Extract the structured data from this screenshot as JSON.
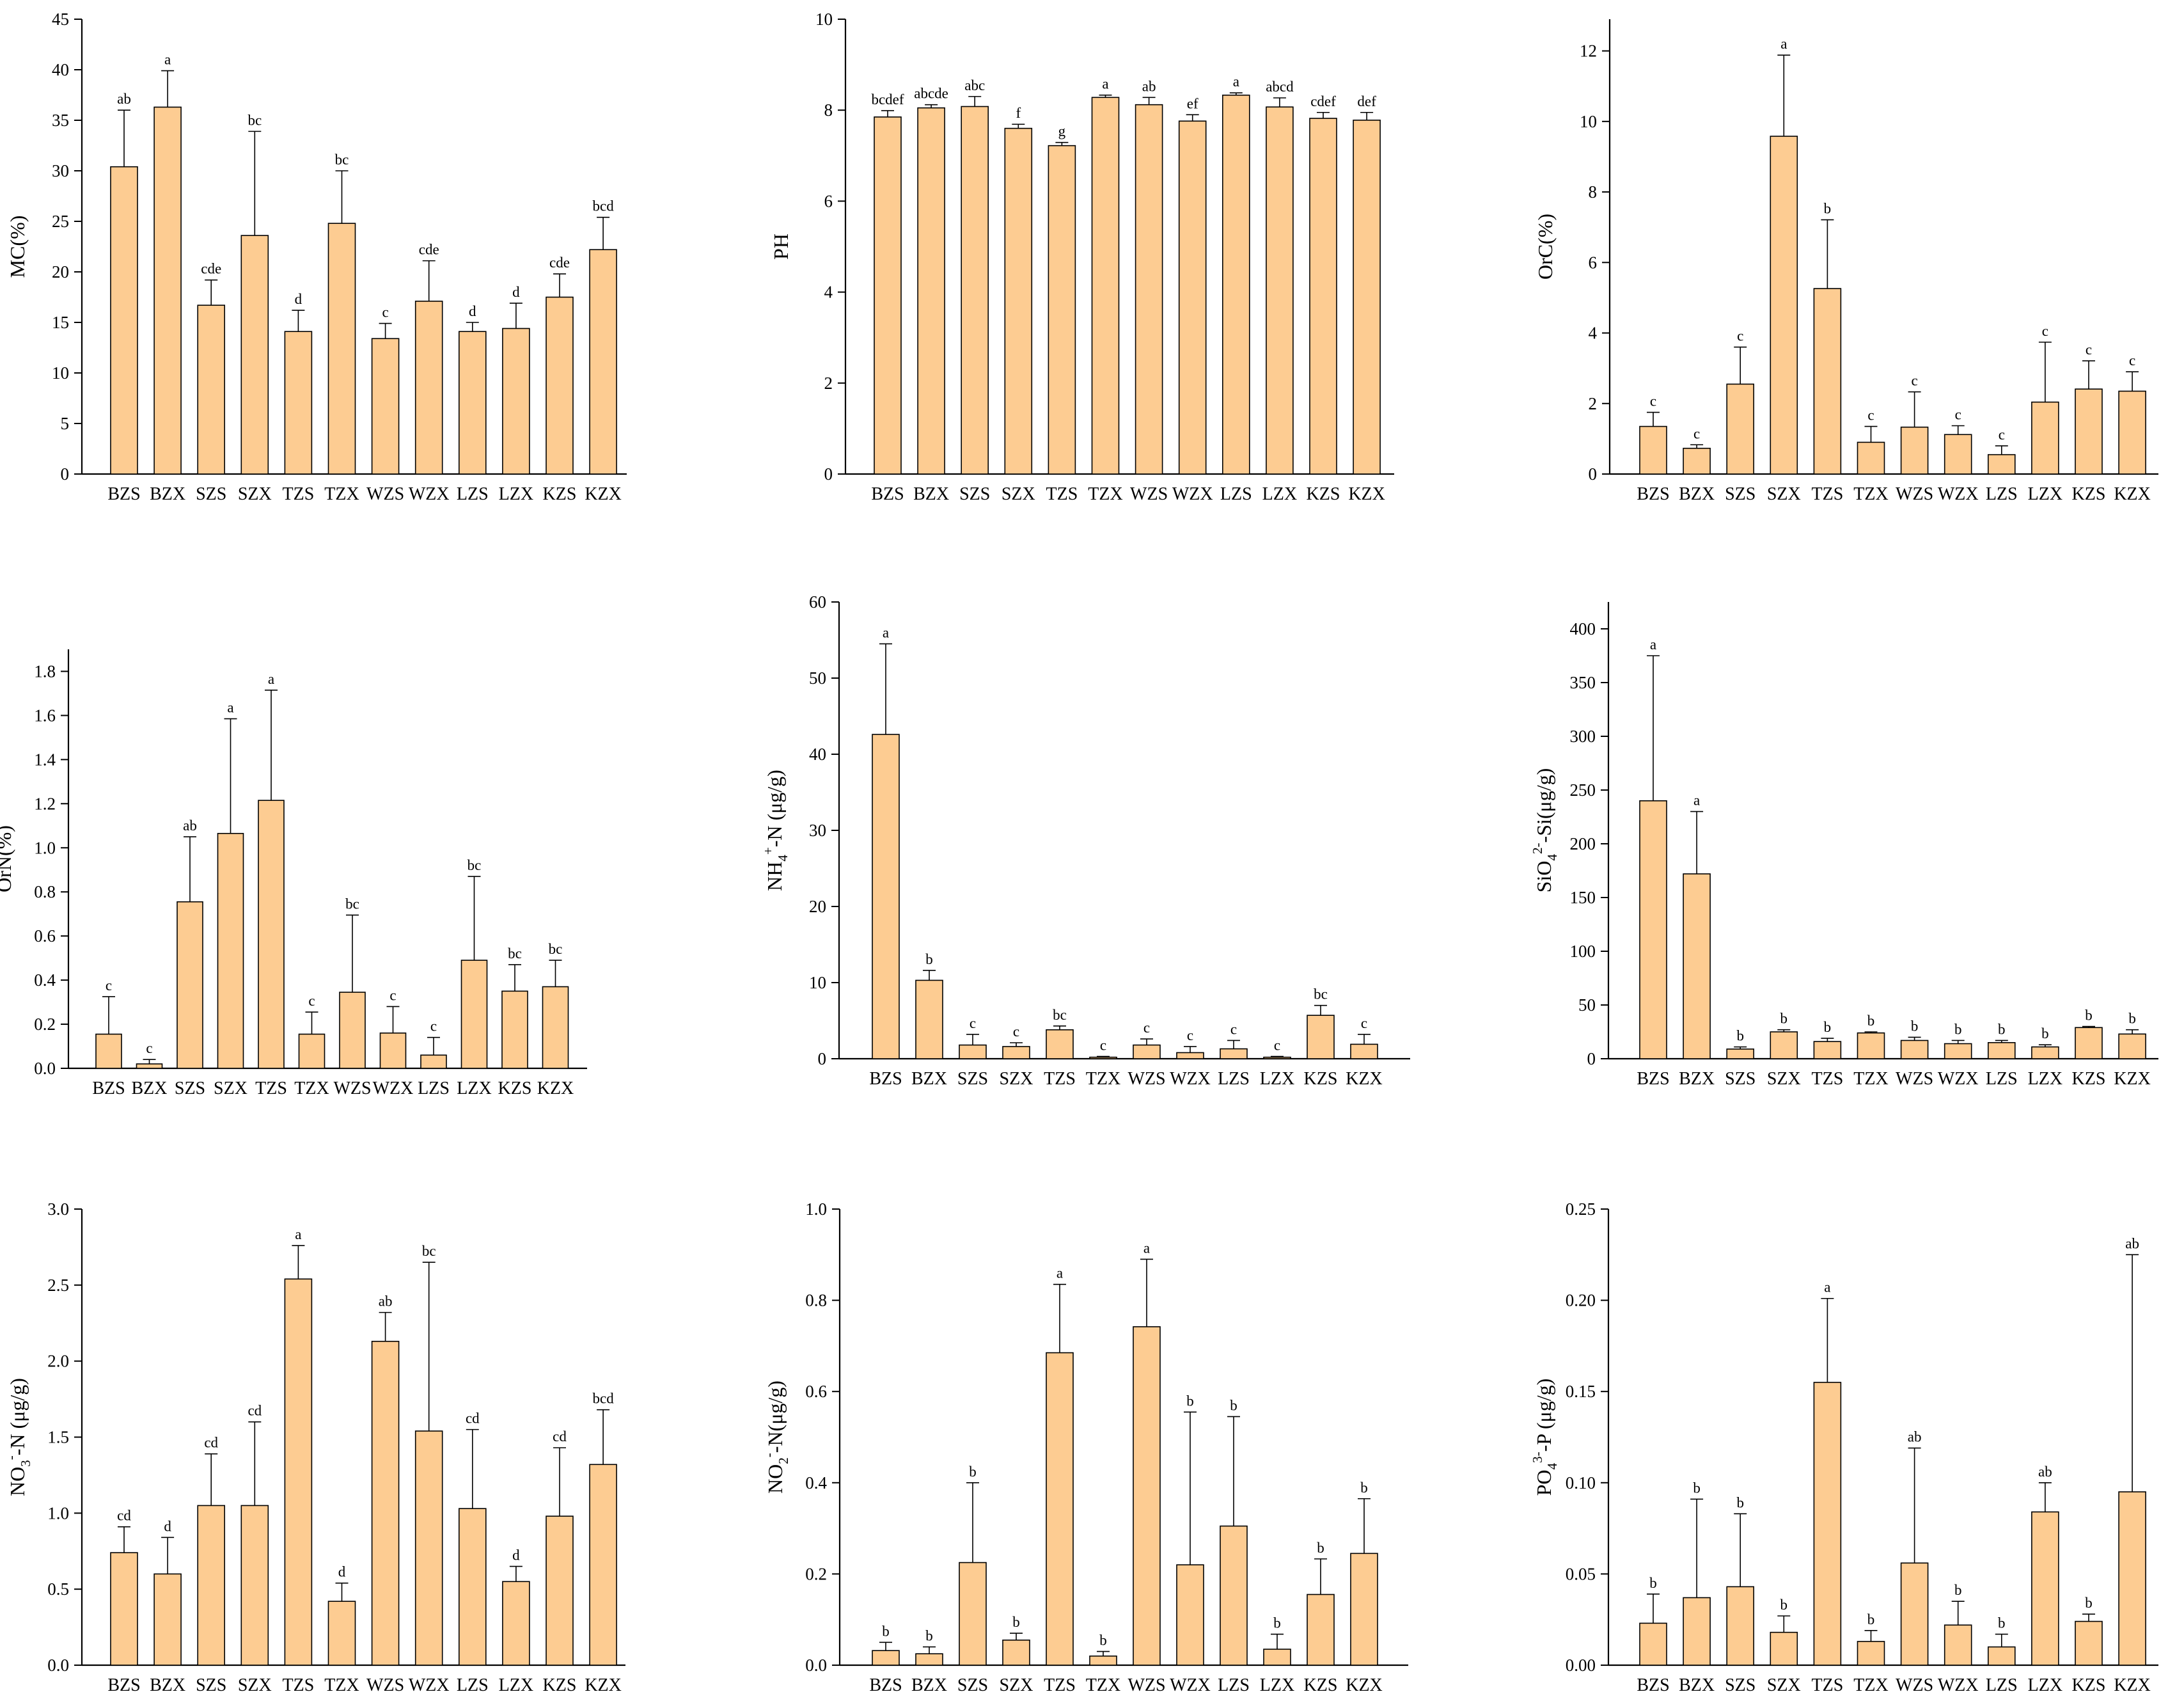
{
  "colors": {
    "bar_fill": "#FDCC92",
    "bar_stroke": "#000000",
    "axis": "#000000",
    "text": "#000000"
  },
  "chart_data": [
    {
      "type": "bar",
      "ylabel": "MC(%)",
      "ylabel_parts": [
        {
          "t": "MC(%)"
        }
      ],
      "ylim": [
        0,
        45
      ],
      "yticks": [
        0,
        5,
        10,
        15,
        20,
        25,
        30,
        35,
        40,
        45
      ],
      "ytick_labels": [
        "0",
        "5",
        "10",
        "15",
        "20",
        "25",
        "30",
        "35",
        "40",
        "45"
      ],
      "categories": [
        "BZS",
        "BZX",
        "SZS",
        "SZX",
        "TZS",
        "TZX",
        "WZS",
        "WZX",
        "LZS",
        "LZX",
        "KZS",
        "KZX"
      ],
      "values": [
        30.4,
        36.3,
        16.7,
        23.6,
        14.1,
        24.8,
        13.4,
        17.1,
        14.1,
        14.4,
        17.5,
        22.2
      ],
      "errors": [
        5.6,
        3.6,
        2.5,
        10.3,
        2.1,
        5.2,
        1.5,
        4.0,
        0.9,
        2.5,
        2.3,
        3.2
      ],
      "letters": [
        "ab",
        "a",
        "cde",
        "bc",
        "d",
        "bc",
        "c",
        "cde",
        "d",
        "d",
        "cde",
        "bcd"
      ]
    },
    {
      "type": "bar",
      "ylabel": "PH",
      "ylabel_parts": [
        {
          "t": "PH"
        }
      ],
      "ylim": [
        0,
        10
      ],
      "yticks": [
        0,
        2,
        4,
        6,
        8,
        10
      ],
      "ytick_labels": [
        "0",
        "2",
        "4",
        "6",
        "8",
        "10"
      ],
      "categories": [
        "BZS",
        "BZX",
        "SZS",
        "SZX",
        "TZS",
        "TZX",
        "WZS",
        "WZX",
        "LZS",
        "LZX",
        "KZS",
        "KZX"
      ],
      "values": [
        7.85,
        8.05,
        8.08,
        7.6,
        7.22,
        8.28,
        8.12,
        7.76,
        8.33,
        8.07,
        7.82,
        7.78
      ],
      "errors": [
        0.14,
        0.07,
        0.22,
        0.09,
        0.07,
        0.05,
        0.16,
        0.14,
        0.05,
        0.2,
        0.13,
        0.17
      ],
      "letters": [
        "bcdef",
        "abcde",
        "abc",
        "f",
        "g",
        "a",
        "ab",
        "ef",
        "a",
        "abcd",
        "cdef",
        "def"
      ]
    },
    {
      "type": "bar",
      "ylabel": "OrC(%)",
      "ylabel_parts": [
        {
          "t": "OrC(%)"
        }
      ],
      "ylim": [
        0,
        12.9
      ],
      "yticks": [
        0,
        2,
        4,
        6,
        8,
        10,
        12
      ],
      "ytick_labels": [
        "0",
        "2",
        "4",
        "6",
        "8",
        "10",
        "12"
      ],
      "categories": [
        "BZS",
        "BZX",
        "SZS",
        "SZX",
        "TZS",
        "TZX",
        "WZS",
        "WZX",
        "LZS",
        "LZX",
        "KZS",
        "KZX"
      ],
      "values": [
        1.35,
        0.73,
        2.55,
        9.58,
        5.26,
        0.9,
        1.33,
        1.12,
        0.55,
        2.04,
        2.41,
        2.35
      ],
      "errors": [
        0.4,
        0.1,
        1.05,
        2.3,
        1.95,
        0.45,
        1.0,
        0.25,
        0.25,
        1.7,
        0.8,
        0.55
      ],
      "letters": [
        "c",
        "c",
        "c",
        "a",
        "b",
        "c",
        "c",
        "c",
        "c",
        "c",
        "c",
        "c"
      ]
    },
    {
      "type": "bar",
      "ylabel": "OrN(%)",
      "ylabel_parts": [
        {
          "t": "OrN(%)"
        }
      ],
      "ylim": [
        0,
        1.9
      ],
      "yticks": [
        0,
        0.2,
        0.4,
        0.6,
        0.8,
        1.0,
        1.2,
        1.4,
        1.6,
        1.8
      ],
      "ytick_labels": [
        "0.0",
        "0.2",
        "0.4",
        "0.6",
        "0.8",
        "1.0",
        "1.2",
        "1.4",
        "1.6",
        "1.8"
      ],
      "categories": [
        "BZS",
        "BZX",
        "SZS",
        "SZX",
        "TZS",
        "TZX",
        "WZS",
        "WZX",
        "LZS",
        "LZX",
        "KZS",
        "KZX"
      ],
      "values": [
        0.155,
        0.02,
        0.755,
        1.065,
        1.215,
        0.155,
        0.345,
        0.16,
        0.06,
        0.49,
        0.35,
        0.37
      ],
      "errors": [
        0.17,
        0.02,
        0.295,
        0.52,
        0.5,
        0.1,
        0.35,
        0.12,
        0.08,
        0.38,
        0.12,
        0.12
      ],
      "letters": [
        "c",
        "c",
        "ab",
        "a",
        "a",
        "c",
        "bc",
        "c",
        "c",
        "bc",
        "bc",
        "bc"
      ]
    },
    {
      "type": "bar",
      "ylabel": "NH4+-N (μg/g)",
      "ylabel_parts": [
        {
          "t": "NH"
        },
        {
          "t": "4",
          "s": "sub"
        },
        {
          "t": "+",
          "s": "sup"
        },
        {
          "t": "-N (μg/g)"
        }
      ],
      "ylim": [
        0,
        60
      ],
      "yticks": [
        0,
        10,
        20,
        30,
        40,
        50,
        60
      ],
      "ytick_labels": [
        "0",
        "10",
        "20",
        "30",
        "40",
        "50",
        "60"
      ],
      "categories": [
        "BZS",
        "BZX",
        "SZS",
        "SZX",
        "TZS",
        "TZX",
        "WZS",
        "WZX",
        "LZS",
        "LZX",
        "KZS",
        "KZX"
      ],
      "values": [
        42.6,
        10.3,
        1.8,
        1.6,
        3.8,
        0.2,
        1.8,
        0.8,
        1.3,
        0.2,
        5.7,
        1.9
      ],
      "errors": [
        11.9,
        1.3,
        1.4,
        0.5,
        0.5,
        0.1,
        0.8,
        0.8,
        1.1,
        0.1,
        1.3,
        1.3
      ],
      "letters": [
        "a",
        "b",
        "c",
        "c",
        "bc",
        "c",
        "c",
        "c",
        "c",
        "c",
        "bc",
        "c"
      ]
    },
    {
      "type": "bar",
      "ylabel": "SiO42--Si(μg/g)",
      "ylabel_parts": [
        {
          "t": "SiO"
        },
        {
          "t": "4",
          "s": "sub"
        },
        {
          "t": "2-",
          "s": "sup"
        },
        {
          "t": "-Si(μg/g)"
        }
      ],
      "ylim": [
        0,
        425
      ],
      "yticks": [
        0,
        50,
        100,
        150,
        200,
        250,
        300,
        350,
        400
      ],
      "ytick_labels": [
        "0",
        "50",
        "100",
        "150",
        "200",
        "250",
        "300",
        "350",
        "400"
      ],
      "categories": [
        "BZS",
        "BZX",
        "SZS",
        "SZX",
        "TZS",
        "TZX",
        "WZS",
        "WZX",
        "LZS",
        "LZX",
        "KZS",
        "KZX"
      ],
      "values": [
        240,
        172,
        9,
        25,
        16,
        24,
        17,
        14,
        15,
        11,
        29,
        23
      ],
      "errors": [
        135,
        58,
        2,
        2,
        3,
        1,
        3,
        3,
        2,
        2,
        1,
        4
      ],
      "letters": [
        "a",
        "a",
        "b",
        "b",
        "b",
        "b",
        "b",
        "b",
        "b",
        "b",
        "b",
        "b"
      ]
    },
    {
      "type": "bar",
      "ylabel": "NO3--N (μg/g)",
      "ylabel_parts": [
        {
          "t": "NO"
        },
        {
          "t": "3",
          "s": "sub"
        },
        {
          "t": "-",
          "s": "sup"
        },
        {
          "t": "-N (μg/g)"
        }
      ],
      "ylim": [
        0,
        3.0
      ],
      "yticks": [
        0,
        0.5,
        1.0,
        1.5,
        2.0,
        2.5,
        3.0
      ],
      "ytick_labels": [
        "0.0",
        "0.5",
        "1.0",
        "1.5",
        "2.0",
        "2.5",
        "3.0"
      ],
      "categories": [
        "BZS",
        "BZX",
        "SZS",
        "SZX",
        "TZS",
        "TZX",
        "WZS",
        "WZX",
        "LZS",
        "LZX",
        "KZS",
        "KZX"
      ],
      "values": [
        0.74,
        0.6,
        1.05,
        1.05,
        2.54,
        0.42,
        2.13,
        1.54,
        1.03,
        0.55,
        0.98,
        1.32
      ],
      "errors": [
        0.17,
        0.24,
        0.34,
        0.55,
        0.22,
        0.12,
        0.19,
        1.11,
        0.52,
        0.1,
        0.45,
        0.36
      ],
      "letters": [
        "cd",
        "d",
        "cd",
        "cd",
        "a",
        "d",
        "ab",
        "bc",
        "cd",
        "d",
        "cd",
        "bcd"
      ]
    },
    {
      "type": "bar",
      "ylabel": "NO2--N(μg/g)",
      "ylabel_parts": [
        {
          "t": "NO"
        },
        {
          "t": "2",
          "s": "sub"
        },
        {
          "t": "-",
          "s": "sup"
        },
        {
          "t": "-N(μg/g)"
        }
      ],
      "ylim": [
        0,
        1.0
      ],
      "yticks": [
        0,
        0.2,
        0.4,
        0.6,
        0.8,
        1.0
      ],
      "ytick_labels": [
        "0.0",
        "0.2",
        "0.4",
        "0.6",
        "0.8",
        "1.0"
      ],
      "categories": [
        "BZS",
        "BZX",
        "SZS",
        "SZX",
        "TZS",
        "TZX",
        "WZS",
        "WZX",
        "LZS",
        "LZX",
        "KZS",
        "KZX"
      ],
      "values": [
        0.032,
        0.025,
        0.225,
        0.055,
        0.685,
        0.02,
        0.742,
        0.22,
        0.305,
        0.035,
        0.155,
        0.245
      ],
      "errors": [
        0.018,
        0.015,
        0.175,
        0.015,
        0.15,
        0.01,
        0.148,
        0.335,
        0.24,
        0.033,
        0.078,
        0.12
      ],
      "letters": [
        "b",
        "b",
        "b",
        "b",
        "a",
        "b",
        "a",
        "b",
        "b",
        "b",
        "b",
        "b"
      ]
    },
    {
      "type": "bar",
      "ylabel": "PO43--P (μg/g)",
      "ylabel_parts": [
        {
          "t": "PO"
        },
        {
          "t": "4",
          "s": "sub"
        },
        {
          "t": "3-",
          "s": "sup"
        },
        {
          "t": "-P (μg/g)"
        }
      ],
      "ylim": [
        0,
        0.25
      ],
      "yticks": [
        0,
        0.05,
        0.1,
        0.15,
        0.2,
        0.25
      ],
      "ytick_labels": [
        "0.00",
        "0.05",
        "0.10",
        "0.15",
        "0.20",
        "0.25"
      ],
      "categories": [
        "BZS",
        "BZX",
        "SZS",
        "SZX",
        "TZS",
        "TZX",
        "WZS",
        "WZX",
        "LZS",
        "LZX",
        "KZS",
        "KZX"
      ],
      "values": [
        0.023,
        0.037,
        0.043,
        0.018,
        0.155,
        0.013,
        0.056,
        0.022,
        0.01,
        0.084,
        0.024,
        0.095
      ],
      "errors": [
        0.016,
        0.054,
        0.04,
        0.009,
        0.046,
        0.006,
        0.063,
        0.013,
        0.007,
        0.016,
        0.004,
        0.13
      ],
      "letters": [
        "b",
        "b",
        "b",
        "b",
        "a",
        "b",
        "ab",
        "b",
        "b",
        "ab",
        "b",
        "ab"
      ]
    }
  ]
}
